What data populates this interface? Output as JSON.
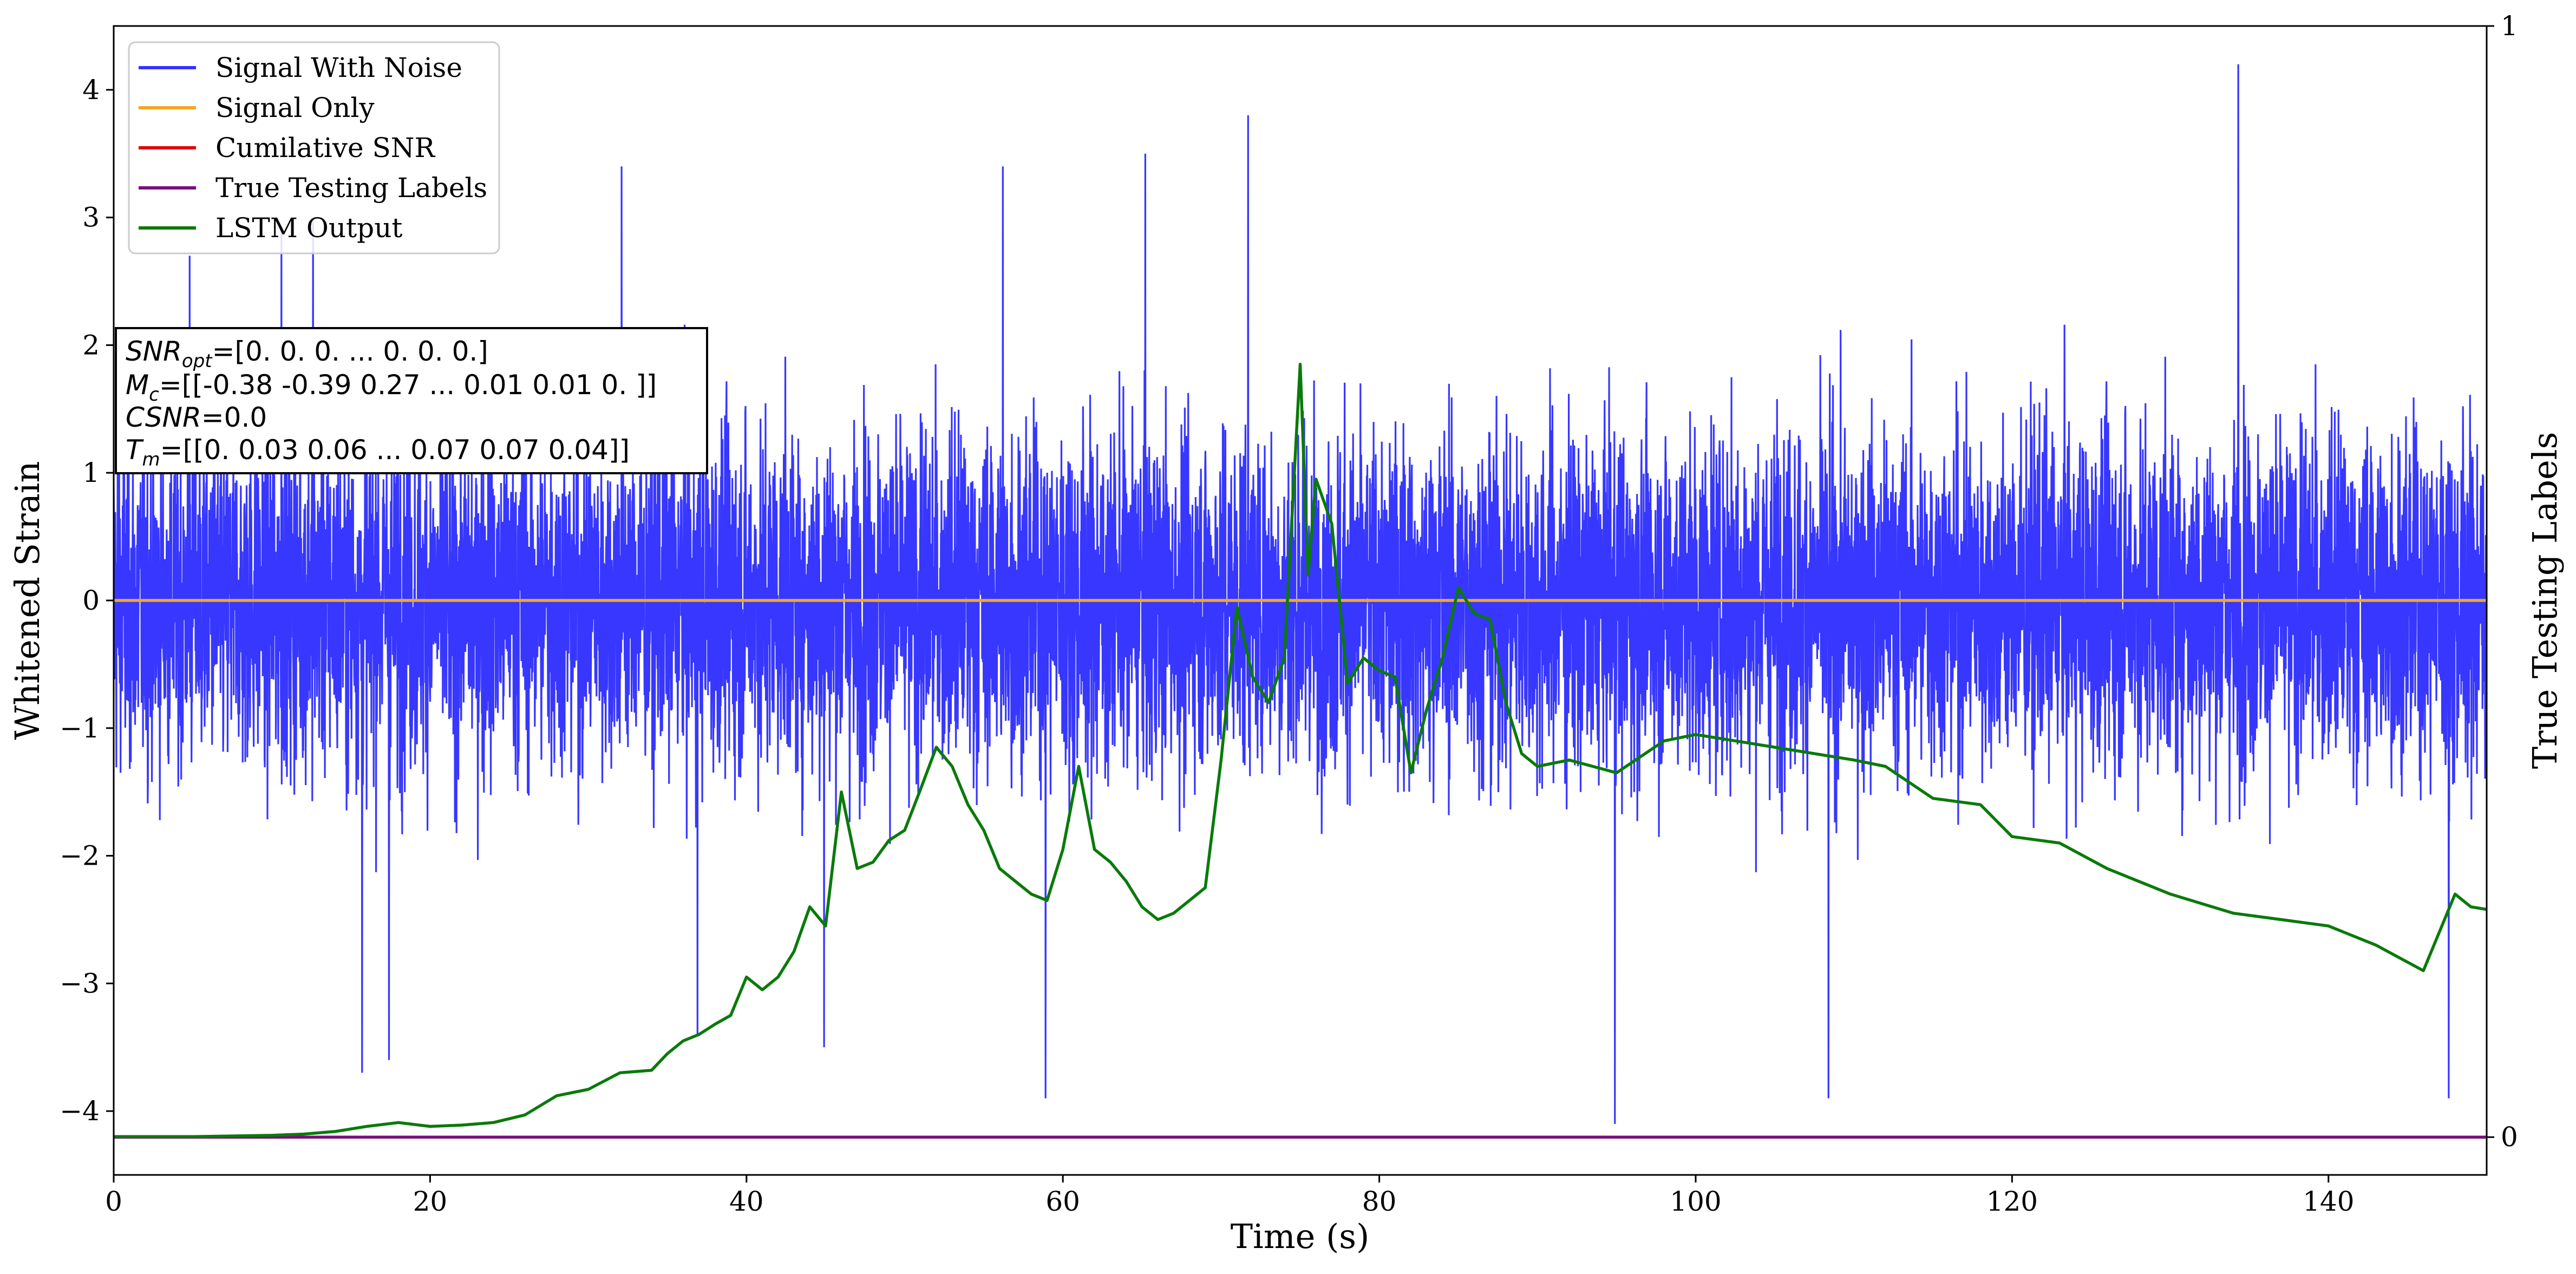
{
  "chart_data": {
    "type": "line",
    "xlabel": "Time (s)",
    "ylabel": "Whitened Strain",
    "y2label": "True Testing Labels",
    "xlim": [
      0,
      150
    ],
    "ylim": [
      -4.5,
      4.5
    ],
    "y2lim": [
      -0.034,
      1.0
    ],
    "x_ticks": [
      0,
      20,
      40,
      60,
      80,
      100,
      120,
      140
    ],
    "y_ticks": [
      -4,
      -3,
      -2,
      -1,
      0,
      1,
      2,
      3,
      4
    ],
    "y2_ticks": [
      0,
      1
    ],
    "grid": false,
    "legend_position": "top-left",
    "series": [
      {
        "name": "Signal With Noise",
        "color": "#3333ff",
        "axis": "left",
        "style": "dense noisy signal centred at 0, amplitude about ±2.5",
        "peaks": [
          {
            "x": 4.8,
            "y": 2.7
          },
          {
            "x": 10.6,
            "y": 2.9
          },
          {
            "x": 12.6,
            "y": 3.0
          },
          {
            "x": 15.7,
            "y": -3.7
          },
          {
            "x": 17.4,
            "y": -3.6
          },
          {
            "x": 32.1,
            "y": 3.4
          },
          {
            "x": 36.9,
            "y": -3.4
          },
          {
            "x": 44.9,
            "y": -3.5
          },
          {
            "x": 56.2,
            "y": 3.4
          },
          {
            "x": 58.9,
            "y": -3.9
          },
          {
            "x": 65.2,
            "y": 3.5
          },
          {
            "x": 71.7,
            "y": 3.8
          },
          {
            "x": 94.9,
            "y": -4.1
          },
          {
            "x": 108.4,
            "y": -3.9
          },
          {
            "x": 134.3,
            "y": 4.2
          },
          {
            "x": 147.6,
            "y": -3.9
          }
        ]
      },
      {
        "name": "Signal Only",
        "color": "#f5a623",
        "axis": "left",
        "x": [
          0,
          150
        ],
        "y": [
          0,
          0
        ]
      },
      {
        "name": "Cumilative SNR",
        "color": "#e00000",
        "axis": "right",
        "x": [],
        "y": []
      },
      {
        "name": "True Testing Labels",
        "color": "#7b0d7b",
        "axis": "right",
        "x": [
          0,
          150
        ],
        "y": [
          0,
          0
        ]
      },
      {
        "name": "LSTM Output",
        "color": "#0a7a0a",
        "axis": "left",
        "x": [
          0,
          5,
          10,
          12,
          14,
          16,
          18,
          20,
          22,
          24,
          26,
          28,
          30,
          32,
          34,
          35,
          36,
          37,
          38,
          39,
          40,
          41,
          42,
          43,
          44,
          45,
          46,
          47,
          48,
          49,
          50,
          51,
          52,
          53,
          54,
          55,
          56,
          57,
          58,
          59,
          60,
          61,
          62,
          63,
          64,
          65,
          66,
          67,
          68,
          69,
          70,
          71,
          72,
          73,
          74,
          75,
          75.5,
          76,
          77,
          78,
          79,
          80,
          81,
          82,
          83,
          84,
          85,
          86,
          87,
          88,
          89,
          90,
          92,
          95,
          98,
          100,
          105,
          110,
          112,
          115,
          118,
          120,
          123,
          126,
          130,
          134,
          137,
          140,
          141,
          143,
          146,
          148,
          149,
          150
        ],
        "y": [
          -4.2,
          -4.2,
          -4.19,
          -4.18,
          -4.16,
          -4.12,
          -4.09,
          -4.12,
          -4.11,
          -4.09,
          -4.03,
          -3.88,
          -3.83,
          -3.7,
          -3.68,
          -3.55,
          -3.45,
          -3.4,
          -3.32,
          -3.25,
          -2.95,
          -3.05,
          -2.95,
          -2.75,
          -2.4,
          -2.55,
          -1.5,
          -2.1,
          -2.05,
          -1.88,
          -1.8,
          -1.48,
          -1.15,
          -1.3,
          -1.6,
          -1.8,
          -2.1,
          -2.2,
          -2.3,
          -2.35,
          -1.95,
          -1.3,
          -1.95,
          -2.05,
          -2.2,
          -2.4,
          -2.5,
          -2.45,
          -2.35,
          -2.25,
          -1.25,
          -0.05,
          -0.6,
          -0.8,
          -0.45,
          1.85,
          0.2,
          0.95,
          0.6,
          -0.65,
          -0.45,
          -0.55,
          -0.6,
          -1.35,
          -0.85,
          -0.45,
          0.1,
          -0.1,
          -0.15,
          -0.8,
          -1.2,
          -1.3,
          -1.25,
          -1.35,
          -1.1,
          -1.05,
          -1.15,
          -1.25,
          -1.3,
          -1.55,
          -1.6,
          -1.85,
          -1.9,
          -2.1,
          -2.3,
          -2.45,
          -2.5,
          -2.55,
          -2.6,
          -2.7,
          -2.9,
          -2.3,
          -2.4,
          -2.42
        ]
      }
    ],
    "legend": [
      {
        "label": "Signal With Noise",
        "color": "#3333ff"
      },
      {
        "label": "Signal Only",
        "color": "#f5a623"
      },
      {
        "label": "Cumilative SNR",
        "color": "#e00000"
      },
      {
        "label": "True Testing Labels",
        "color": "#7b0d7b"
      },
      {
        "label": "LSTM Output",
        "color": "#0a7a0a"
      }
    ],
    "annotation_box": {
      "line1": {
        "var": "SNR",
        "sub": "opt",
        "rest": "=[0. 0. 0. ... 0. 0. 0.]"
      },
      "line2": {
        "var": "M",
        "sub": "c",
        "rest": "=[[-0.38 -0.39  0.27 ...  0.01  0.01  0.  ]]"
      },
      "line3": {
        "var": "CSNR",
        "sub": "",
        "rest": "=0.0"
      },
      "line4": {
        "var": "T",
        "sub": "m",
        "rest": "=[[0.   0.03 0.06 ... 0.07 0.07 0.04]]"
      }
    }
  }
}
